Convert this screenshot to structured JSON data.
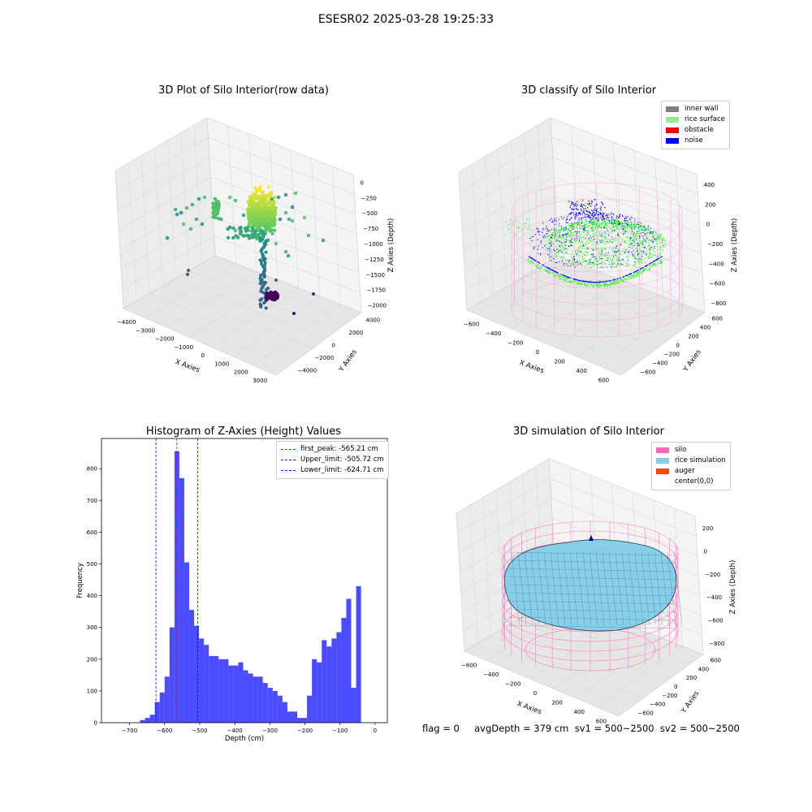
{
  "suptitle": "ESESR02 2025-03-28 19:25:33",
  "panels": {
    "raw": {
      "title": "3D Plot of Silo Interior(row data)",
      "xlabel": "X Axies",
      "ylabel": "Y Axies",
      "zlabel": "Z Axies (Depth)",
      "xticks": [
        "−4000",
        "−3000",
        "−2000",
        "−1000",
        "0",
        "1000",
        "2000",
        "3000"
      ],
      "yticks": [
        "−4000",
        "−2000",
        "0",
        "2000",
        "4000"
      ],
      "zticks": [
        "0",
        "−250",
        "−500",
        "−750",
        "−1000",
        "−1250",
        "−1500",
        "−1750",
        "−2000"
      ]
    },
    "classify": {
      "title": "3D classify of Silo Interior",
      "xlabel": "X Axies",
      "ylabel": "Y Axies",
      "zlabel": "Z Axies (Depth)",
      "xticks": [
        "−600",
        "−400",
        "−200",
        "0",
        "200",
        "400",
        "600"
      ],
      "yticks": [
        "−600",
        "−400",
        "−200",
        "0",
        "200",
        "400",
        "600"
      ],
      "zticks": [
        "400",
        "200",
        "0",
        "−200",
        "−400",
        "−600",
        "−800"
      ],
      "legend": [
        {
          "label": "inner wall",
          "color": "#808080"
        },
        {
          "label": "rice surface",
          "color": "#90ee90"
        },
        {
          "label": "obstacle",
          "color": "#ff0000"
        },
        {
          "label": "noise",
          "color": "#0000ff"
        }
      ]
    },
    "simulation": {
      "title": "3D simulation of Silo Interior",
      "xlabel": "X Axies",
      "ylabel": "Y Axies",
      "zlabel": "Z Axies (Depth)",
      "xticks": [
        "−600",
        "−400",
        "−200",
        "0",
        "200",
        "400",
        "600"
      ],
      "yticks": [
        "−600",
        "−400",
        "−200",
        "0",
        "200",
        "400",
        "600"
      ],
      "zticks": [
        "200",
        "0",
        "−200",
        "−400",
        "−600",
        "−800"
      ],
      "legend": [
        {
          "label": "silo",
          "color": "#ff69b4"
        },
        {
          "label": "rice simulation",
          "color": "#87ceeb"
        },
        {
          "label": "auger",
          "color": "#ff4500"
        },
        {
          "label": "center(0,0)",
          "color": ""
        }
      ]
    }
  },
  "chart_data": {
    "type": "bar",
    "title": "Histogram of Z-Axies (Height) Values",
    "xlabel": "Depth (cm)",
    "ylabel": "Frequency",
    "xlim": [
      -780,
      35
    ],
    "ylim": [
      0,
      895
    ],
    "xticks": [
      -700,
      -600,
      -500,
      -400,
      -300,
      -200,
      -100,
      0
    ],
    "yticks": [
      0,
      100,
      200,
      300,
      400,
      500,
      600,
      700,
      800
    ],
    "bin_width": 14,
    "bins_start": [
      -670,
      -656,
      -642,
      -628,
      -614,
      -600,
      -586,
      -572,
      -558,
      -544,
      -530,
      -516,
      -502,
      -488,
      -474,
      -460,
      -446,
      -432,
      -418,
      -404,
      -390,
      -376,
      -362,
      -348,
      -334,
      -320,
      -306,
      -292,
      -278,
      -264,
      -250,
      -236,
      -222,
      -208,
      -194,
      -180,
      -166,
      -152,
      -138,
      -124,
      -110,
      -96,
      -82,
      -68,
      -54,
      -40,
      -26,
      -12
    ],
    "counts": [
      8,
      15,
      25,
      65,
      95,
      145,
      300,
      855,
      770,
      505,
      355,
      305,
      265,
      245,
      210,
      210,
      200,
      200,
      180,
      180,
      190,
      165,
      155,
      145,
      145,
      125,
      110,
      100,
      85,
      65,
      35,
      35,
      15,
      15,
      85,
      200,
      190,
      260,
      240,
      265,
      285,
      330,
      390,
      110,
      430,
      0,
      0,
      0
    ],
    "series": [
      {
        "name": "first_peak: -565.21 cm",
        "value": -565.21,
        "color": "#ff0000"
      },
      {
        "name": "Upper_limit: -505.72 cm",
        "value": -505.72,
        "color": "#0000ff"
      },
      {
        "name": "Lower_limit: -624.71 cm",
        "value": -624.71,
        "color": "#0000ff"
      }
    ],
    "bar_color": "#0000ff",
    "grid": false,
    "legend_position": "top-right"
  },
  "footer": "flag = 0     avgDepth = 379 cm  sv1 = 500~2500  sv2 = 500~2500"
}
